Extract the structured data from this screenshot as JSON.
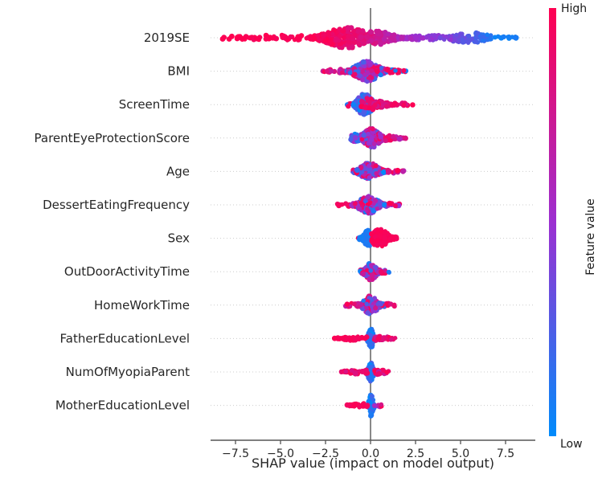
{
  "chart_data": {
    "type": "scatter",
    "variant": "shap-summary-beeswarm",
    "title": "",
    "xlabel": "SHAP value (impact on model output)",
    "x_ticks": [
      -7.5,
      -5.0,
      -2.5,
      0.0,
      2.5,
      5.0,
      7.5
    ],
    "x_tick_labels": [
      "−7.5",
      "−5.0",
      "−2.5",
      "0.0",
      "2.5",
      "5.0",
      "7.5"
    ],
    "xlim": [
      -8.9,
      9.2
    ],
    "zero_line_x": 0.0,
    "grid": {
      "show": true,
      "style": "dotted-horizontal-per-feature"
    },
    "legend_position": "right-colorbar",
    "colorbar": {
      "title": "Feature value",
      "high_label": "High",
      "low_label": "Low",
      "high_color": "#ff0051",
      "mid_color": "#9c2fd1",
      "low_color": "#008bfb"
    },
    "style": {
      "zero_line_color": "#888888",
      "axis_color": "#555555",
      "grid_color": "#cccccc",
      "text_color": "#262626",
      "background": "#ffffff"
    },
    "t_semantics": "color t: 0 = low feature value (blue), 1 = high feature value (red)",
    "features": [
      {
        "name": "2019SE",
        "shap_range": [
          -8.3,
          8.3
        ],
        "clusters": [
          {
            "x0": -8.25,
            "x1": -7.55,
            "peak": -7.9,
            "sig": 1.0,
            "n": 7,
            "th": 2.0,
            "color": {
              "mode": "fixed",
              "a": 1.0
            }
          },
          {
            "x0": -7.45,
            "x1": -3.1,
            "peak": -5.2,
            "sig": 2.2,
            "n": 80,
            "th": 3.2,
            "color": {
              "mode": "ramp",
              "a": 1.0,
              "b": 0.98
            }
          },
          {
            "x0": -3.2,
            "x1": -0.05,
            "peak": -1.35,
            "sig": 0.95,
            "n": 270,
            "th": 13.5,
            "color": {
              "mode": "ramp",
              "a": 1.0,
              "b": 0.82
            }
          },
          {
            "x0": -0.05,
            "x1": 2.1,
            "peak": 0.35,
            "sig": 0.75,
            "n": 115,
            "th": 8.5,
            "color": {
              "mode": "ramp",
              "a": 0.8,
              "b": 0.55
            }
          },
          {
            "x0": 2.1,
            "x1": 4.5,
            "peak": 3.2,
            "sig": 1.4,
            "n": 50,
            "th": 3.0,
            "color": {
              "mode": "ramp",
              "a": 0.55,
              "b": 0.38
            }
          },
          {
            "x0": 4.4,
            "x1": 6.7,
            "peak": 5.5,
            "sig": 0.95,
            "n": 85,
            "th": 6.5,
            "color": {
              "mode": "ramp",
              "a": 0.42,
              "b": 0.1
            }
          },
          {
            "x0": 6.7,
            "x1": 8.35,
            "peak": 7.2,
            "sig": 1.1,
            "n": 13,
            "th": 2.2,
            "color": {
              "mode": "fixed",
              "a": 0.06
            }
          }
        ]
      },
      {
        "name": "BMI",
        "shap_range": [
          -2.7,
          2.1
        ],
        "clusters": [
          {
            "x0": -2.65,
            "x1": -1.15,
            "peak": -1.7,
            "sig": 0.9,
            "n": 20,
            "th": 2.4,
            "color": {
              "mode": "mix",
              "a": 0.65,
              "b": 1.0
            }
          },
          {
            "x0": -1.3,
            "x1": 0.95,
            "peak": -0.2,
            "sig": 0.55,
            "n": 235,
            "th": 13.0,
            "color": {
              "mode": "mix",
              "a": 0.0,
              "b": 1.0
            }
          },
          {
            "x0": 0.95,
            "x1": 2.05,
            "peak": 1.3,
            "sig": 0.6,
            "n": 24,
            "th": 2.8,
            "color": {
              "mode": "binary",
              "a": 0.06,
              "b": 0.95,
              "p": 0.45
            }
          }
        ]
      },
      {
        "name": "ScreenTime",
        "shap_range": [
          -1.4,
          2.4
        ],
        "clusters": [
          {
            "x0": -1.4,
            "x1": -0.95,
            "peak": -1.15,
            "sig": 0.4,
            "n": 6,
            "th": 2.2,
            "color": {
              "mode": "binary",
              "a": 0.1,
              "b": 0.95,
              "p": 0.5
            }
          },
          {
            "x0": -0.95,
            "x1": 0.15,
            "peak": -0.33,
            "sig": 0.34,
            "n": 195,
            "th": 13.5,
            "color": {
              "mode": "mix",
              "a": 0.0,
              "b": 0.35
            }
          },
          {
            "x0": -0.55,
            "x1": 0.2,
            "peak": -0.15,
            "sig": 0.4,
            "n": 28,
            "th": 8.0,
            "color": {
              "mode": "mix",
              "a": 0.78,
              "b": 1.0
            }
          },
          {
            "x0": 0.15,
            "x1": 1.35,
            "peak": 0.4,
            "sig": 0.5,
            "n": 55,
            "th": 4.5,
            "color": {
              "mode": "mix",
              "a": 0.75,
              "b": 1.0
            }
          },
          {
            "x0": 1.35,
            "x1": 2.35,
            "peak": 1.6,
            "sig": 0.55,
            "n": 13,
            "th": 2.2,
            "color": {
              "mode": "mix",
              "a": 0.8,
              "b": 1.0
            }
          }
        ]
      },
      {
        "name": "ParentEyeProtectionScore",
        "shap_range": [
          -1.2,
          2.0
        ],
        "clusters": [
          {
            "x0": -1.15,
            "x1": -0.45,
            "peak": -0.7,
            "sig": 0.4,
            "n": 35,
            "th": 5.0,
            "color": {
              "mode": "mix",
              "a": 0.0,
              "b": 0.6
            }
          },
          {
            "x0": -0.5,
            "x1": 0.7,
            "peak": 0.05,
            "sig": 0.36,
            "n": 175,
            "th": 12.5,
            "color": {
              "mode": "mix",
              "a": 0.25,
              "b": 1.0
            }
          },
          {
            "x0": 0.7,
            "x1": 2.0,
            "peak": 0.95,
            "sig": 0.5,
            "n": 28,
            "th": 3.2,
            "color": {
              "mode": "mix",
              "a": 0.6,
              "b": 1.0
            }
          }
        ]
      },
      {
        "name": "Age",
        "shap_range": [
          -1.0,
          1.9
        ],
        "clusters": [
          {
            "x0": -1.0,
            "x1": 0.9,
            "peak": -0.05,
            "sig": 0.4,
            "n": 175,
            "th": 11.5,
            "color": {
              "mode": "mix",
              "a": 0.0,
              "b": 1.0
            }
          },
          {
            "x0": 0.9,
            "x1": 1.85,
            "peak": 1.15,
            "sig": 0.5,
            "n": 16,
            "th": 2.6,
            "color": {
              "mode": "mix",
              "a": 0.6,
              "b": 1.0
            }
          }
        ]
      },
      {
        "name": "DessertEatingFrequency",
        "shap_range": [
          -1.9,
          1.6
        ],
        "clusters": [
          {
            "x0": -1.85,
            "x1": -1.05,
            "peak": -1.45,
            "sig": 0.5,
            "n": 8,
            "th": 2.0,
            "color": {
              "mode": "fixed",
              "a": 0.95
            }
          },
          {
            "x0": -1.05,
            "x1": 0.9,
            "peak": -0.1,
            "sig": 0.42,
            "n": 165,
            "th": 11.5,
            "color": {
              "mode": "mix",
              "a": 0.0,
              "b": 1.0
            }
          },
          {
            "x0": 0.9,
            "x1": 1.6,
            "peak": 1.05,
            "sig": 0.45,
            "n": 11,
            "th": 2.2,
            "color": {
              "mode": "mix",
              "a": 0.5,
              "b": 1.0
            }
          }
        ]
      },
      {
        "name": "Sex",
        "shap_range": [
          -0.7,
          1.5
        ],
        "clusters": [
          {
            "x0": -0.72,
            "x1": -0.5,
            "peak": -0.6,
            "sig": 0.3,
            "n": 4,
            "th": 1.8,
            "color": {
              "mode": "fixed",
              "a": 0.95
            }
          },
          {
            "x0": -0.62,
            "x1": -0.02,
            "peak": -0.12,
            "sig": 0.2,
            "n": 95,
            "th": 10.5,
            "color": {
              "mode": "fixed",
              "a": 0.08
            }
          },
          {
            "x0": 0.06,
            "x1": 1.45,
            "peak": 0.52,
            "sig": 0.38,
            "n": 135,
            "th": 11.5,
            "color": {
              "mode": "fixed",
              "a": 0.97
            }
          }
        ]
      },
      {
        "name": "OutDoorActivityTime",
        "shap_range": [
          -0.6,
          1.1
        ],
        "clusters": [
          {
            "x0": -0.58,
            "x1": 0.55,
            "peak": 0.0,
            "sig": 0.27,
            "n": 135,
            "th": 10.5,
            "color": {
              "mode": "mix",
              "a": 0.0,
              "b": 1.0
            }
          },
          {
            "x0": 0.55,
            "x1": 0.95,
            "peak": 0.7,
            "sig": 0.35,
            "n": 7,
            "th": 2.2,
            "color": {
              "mode": "mix",
              "a": 0.3,
              "b": 1.0
            }
          },
          {
            "x0": 0.98,
            "x1": 1.12,
            "peak": 1.05,
            "sig": 0.3,
            "n": 2,
            "th": 1.2,
            "color": {
              "mode": "fixed",
              "a": 0.1
            }
          }
        ]
      },
      {
        "name": "HomeWorkTime",
        "shap_range": [
          -1.4,
          1.4
        ],
        "clusters": [
          {
            "x0": -0.78,
            "x1": 0.78,
            "peak": 0.0,
            "sig": 0.33,
            "n": 155,
            "th": 11.5,
            "color": {
              "mode": "mix",
              "a": 0.0,
              "b": 1.0
            }
          },
          {
            "x0": -1.38,
            "x1": -0.75,
            "peak": -1.05,
            "sig": 0.4,
            "n": 9,
            "th": 2.2,
            "color": {
              "mode": "mix",
              "a": 0.7,
              "b": 1.0
            }
          },
          {
            "x0": 0.75,
            "x1": 1.35,
            "peak": 1.0,
            "sig": 0.4,
            "n": 10,
            "th": 2.2,
            "color": {
              "mode": "mix",
              "a": 0.7,
              "b": 1.0
            }
          }
        ]
      },
      {
        "name": "FatherEducationLevel",
        "shap_range": [
          -2.1,
          1.4
        ],
        "clusters": [
          {
            "x0": -0.18,
            "x1": 0.2,
            "peak": 0.02,
            "sig": 0.11,
            "n": 95,
            "th": 13.0,
            "color": {
              "mode": "mix",
              "a": 0.0,
              "b": 0.25
            }
          },
          {
            "x0": -2.1,
            "x1": -0.18,
            "peak": -0.65,
            "sig": 0.75,
            "n": 42,
            "th": 2.8,
            "color": {
              "mode": "fixed",
              "a": 0.97
            }
          },
          {
            "x0": 0.2,
            "x1": 1.38,
            "peak": 0.55,
            "sig": 0.5,
            "n": 30,
            "th": 2.8,
            "color": {
              "mode": "mix",
              "a": 0.72,
              "b": 1.0
            }
          }
        ]
      },
      {
        "name": "NumOfMyopiaParent",
        "shap_range": [
          -1.6,
          1.0
        ],
        "clusters": [
          {
            "x0": -0.18,
            "x1": 0.2,
            "peak": 0.0,
            "sig": 0.11,
            "n": 85,
            "th": 12.0,
            "color": {
              "mode": "mix",
              "a": 0.0,
              "b": 0.25
            }
          },
          {
            "x0": -1.62,
            "x1": -0.18,
            "peak": -0.55,
            "sig": 0.6,
            "n": 30,
            "th": 3.0,
            "color": {
              "mode": "mix",
              "a": 0.8,
              "b": 1.0
            }
          },
          {
            "x0": 0.2,
            "x1": 1.0,
            "peak": 0.42,
            "sig": 0.4,
            "n": 24,
            "th": 3.0,
            "color": {
              "mode": "mix",
              "a": 0.65,
              "b": 1.0
            }
          }
        ]
      },
      {
        "name": "MotherEducationLevel",
        "shap_range": [
          -1.3,
          0.6
        ],
        "clusters": [
          {
            "x0": -0.14,
            "x1": 0.2,
            "peak": 0.02,
            "sig": 0.1,
            "n": 88,
            "th": 13.5,
            "color": {
              "mode": "mix",
              "a": 0.0,
              "b": 0.25
            }
          },
          {
            "x0": -1.3,
            "x1": -0.14,
            "peak": -0.5,
            "sig": 0.5,
            "n": 28,
            "th": 2.8,
            "color": {
              "mode": "fixed",
              "a": 0.96
            }
          },
          {
            "x0": 0.2,
            "x1": 0.62,
            "peak": 0.35,
            "sig": 0.25,
            "n": 6,
            "th": 1.8,
            "color": {
              "mode": "mix",
              "a": 0.45,
              "b": 1.0
            }
          }
        ]
      }
    ]
  }
}
